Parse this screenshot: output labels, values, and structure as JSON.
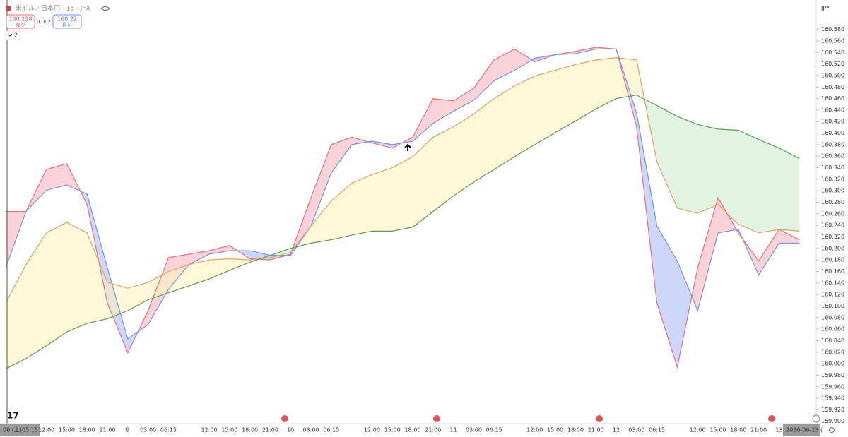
{
  "header": {
    "sell_price": 160.218,
    "sell_label": "売り",
    "spread": 0.002,
    "buy_price": 160.22,
    "buy_label": "買い",
    "indicator_count": 2
  },
  "chart_data": {
    "type": "line",
    "title": "米ドル／日本円 · 15 · JFX",
    "y_axis_label": "JPY",
    "x_cursor_labels": [
      "06 (土)",
      "05:15"
    ],
    "x_end_label": "2026-06-13 (",
    "categories": [
      null,
      null,
      "12:00",
      "15:00",
      "18:00",
      "21:00",
      "9",
      "03:00",
      "06:15",
      null,
      "12:00",
      "15:00",
      "18:00",
      "21:00",
      "10",
      "03:00",
      "06:15",
      null,
      "12:00",
      "15:00",
      "18:00",
      "21:00",
      "11",
      "03:00",
      "06:15",
      null,
      "12:00",
      "15:00",
      "18:00",
      "21:00",
      "12",
      "03:00",
      "06:15",
      null,
      "12:00",
      "15:00",
      "18:00",
      "21:00",
      "13",
      null
    ],
    "series": [
      {
        "color": "#e8707f",
        "fill_above": "rgba(242,140,155,0.38)",
        "values": [
          160.264,
          160.264,
          160.337,
          160.347,
          160.276,
          160.105,
          160.019,
          160.092,
          160.184,
          160.19,
          160.196,
          160.205,
          160.182,
          160.18,
          160.19,
          160.288,
          160.38,
          160.393,
          160.383,
          160.374,
          160.393,
          160.46,
          160.456,
          160.478,
          160.527,
          160.546,
          160.524,
          160.536,
          160.542,
          160.549,
          160.546,
          160.411,
          160.105,
          159.994,
          160.166,
          160.288,
          160.227,
          160.178,
          160.233,
          160.215
        ]
      },
      {
        "color": "#7a92e6",
        "fill_above": "rgba(120,150,240,0.38)",
        "values": [
          160.166,
          160.264,
          160.301,
          160.31,
          160.294,
          160.166,
          160.043,
          160.068,
          160.129,
          160.172,
          160.19,
          160.196,
          160.196,
          160.188,
          160.188,
          160.239,
          160.331,
          160.38,
          160.386,
          160.38,
          160.386,
          160.417,
          160.438,
          160.457,
          160.491,
          160.509,
          160.53,
          160.536,
          160.538,
          160.546,
          160.546,
          160.435,
          160.239,
          160.178,
          160.092,
          160.227,
          160.233,
          160.154,
          160.209,
          160.209
        ]
      },
      {
        "color": "#e3a064",
        "fill_above": "rgba(255,244,185,0.55)",
        "values": [
          160.105,
          160.172,
          160.227,
          160.245,
          160.227,
          160.141,
          160.131,
          160.141,
          160.16,
          160.172,
          160.18,
          160.182,
          160.18,
          160.184,
          160.193,
          160.239,
          160.282,
          160.313,
          160.328,
          160.34,
          160.359,
          160.393,
          160.411,
          160.433,
          160.46,
          160.482,
          160.499,
          160.509,
          160.519,
          160.527,
          160.531,
          160.527,
          160.35,
          160.27,
          160.261,
          160.276,
          160.242,
          160.227,
          160.233,
          160.23
        ]
      },
      {
        "color": "#5e9a56",
        "fill_above": "rgba(170,220,170,0.35)",
        "values": [
          159.991,
          160.009,
          160.031,
          160.055,
          160.07,
          160.078,
          160.092,
          160.111,
          160.123,
          160.135,
          160.147,
          160.162,
          160.176,
          160.188,
          160.2,
          160.209,
          160.215,
          160.223,
          160.23,
          160.23,
          160.237,
          160.264,
          160.291,
          160.315,
          160.337,
          160.359,
          160.38,
          160.401,
          160.421,
          160.442,
          160.46,
          160.466,
          160.448,
          160.429,
          160.415,
          160.407,
          160.405,
          160.389,
          160.374,
          160.356
        ]
      }
    ],
    "ylim": [
      159.896,
      160.631
    ],
    "yticks": [
      {
        "value": 159.9,
        "label": "159.900"
      },
      {
        "value": 159.92,
        "label": "159.920"
      },
      {
        "value": 159.94,
        "label": "159.940"
      },
      {
        "value": 159.96,
        "label": "159.960"
      },
      {
        "value": 159.98,
        "label": "159.980"
      },
      {
        "value": 160,
        "label": "160.000"
      },
      {
        "value": 160.02,
        "label": "160.020"
      },
      {
        "value": 160.04,
        "label": "160.040"
      },
      {
        "value": 160.06,
        "label": "160.060"
      },
      {
        "value": 160.08,
        "label": "160.080"
      },
      {
        "value": 160.1,
        "label": "160.100"
      },
      {
        "value": 160.12,
        "label": "160.120"
      },
      {
        "value": 160.14,
        "label": "160.140"
      },
      {
        "value": 160.16,
        "label": "160.160"
      },
      {
        "value": 160.18,
        "label": "160.180"
      },
      {
        "value": 160.2,
        "label": "160.200"
      },
      {
        "value": 160.22,
        "label": "160.220"
      },
      {
        "value": 160.24,
        "label": "160.240"
      },
      {
        "value": 160.26,
        "label": "160.260"
      },
      {
        "value": 160.28,
        "label": "160.280"
      },
      {
        "value": 160.3,
        "label": "160.300"
      },
      {
        "value": 160.32,
        "label": "160.320"
      },
      {
        "value": 160.34,
        "label": "160.340"
      },
      {
        "value": 160.36,
        "label": "160.360"
      },
      {
        "value": 160.38,
        "label": "160.380"
      },
      {
        "value": 160.4,
        "label": "160.400"
      },
      {
        "value": 160.42,
        "label": "160.420"
      },
      {
        "value": 160.44,
        "label": "160.440"
      },
      {
        "value": 160.46,
        "label": "160.460"
      },
      {
        "value": 160.48,
        "label": "160.480"
      },
      {
        "value": 160.5,
        "label": "160.500"
      },
      {
        "value": 160.52,
        "label": "160.520"
      },
      {
        "value": 160.54,
        "label": "160.540"
      },
      {
        "value": 160.56,
        "label": "160.560"
      },
      {
        "value": 160.58,
        "label": "160.580"
      }
    ],
    "grid": false
  }
}
